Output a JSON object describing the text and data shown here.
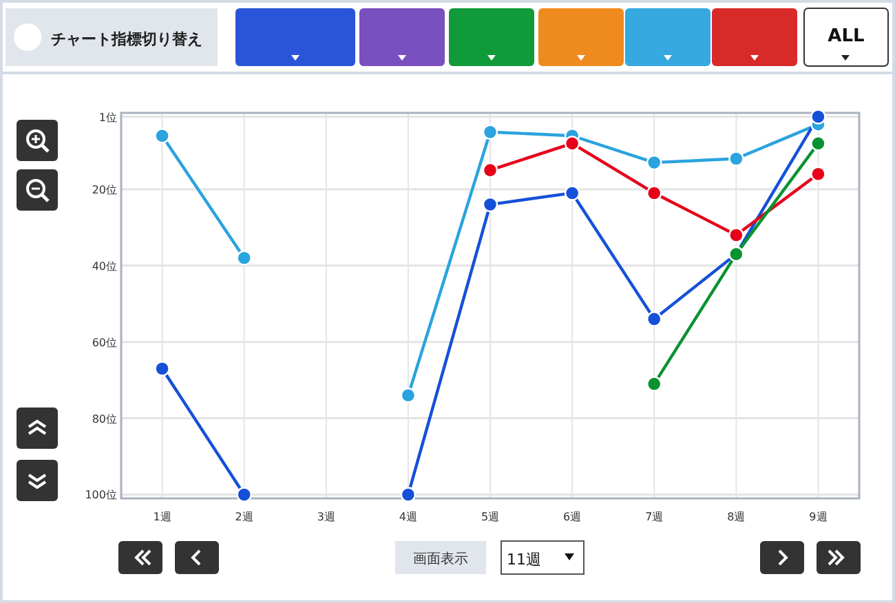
{
  "chart_data": {
    "type": "line",
    "categories": [
      "1週",
      "2週",
      "3週",
      "4週",
      "5週",
      "6週",
      "7週",
      "8週",
      "9週"
    ],
    "series": [
      {
        "color": "#2aa3de",
        "values": [
          6,
          38,
          null,
          74,
          5,
          6,
          13,
          12,
          3
        ]
      },
      {
        "color": "#1550d8",
        "values": [
          67,
          100,
          null,
          100,
          24,
          21,
          54,
          37,
          1
        ]
      },
      {
        "color": "#e6001a",
        "values": [
          null,
          null,
          null,
          null,
          15,
          8,
          21,
          32,
          16
        ]
      },
      {
        "color": "#0a9232",
        "values": [
          null,
          null,
          null,
          null,
          null,
          null,
          71,
          37,
          8
        ]
      }
    ],
    "ylim": [
      101,
      0
    ],
    "yticks": [
      {
        "value": 1,
        "label": "1位"
      },
      {
        "value": 20,
        "label": "20位"
      },
      {
        "value": 40,
        "label": "40位"
      },
      {
        "value": 60,
        "label": "60位"
      },
      {
        "value": 80,
        "label": "80位"
      },
      {
        "value": 100,
        "label": "100位"
      }
    ],
    "grid": true,
    "marker": "circle",
    "line_style": "solid",
    "annotations": [
      "チャート指標切り替え",
      "ALL",
      "画面表示",
      "11週"
    ]
  }
}
